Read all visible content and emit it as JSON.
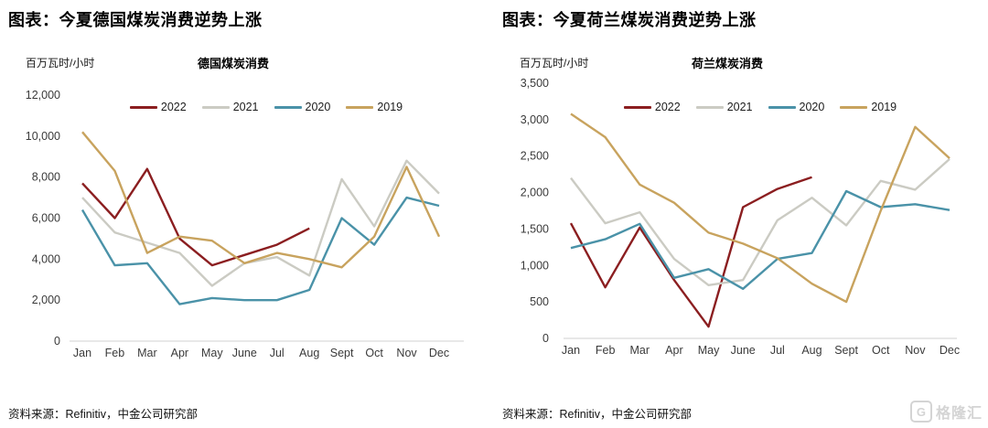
{
  "page": {
    "background": "#ffffff"
  },
  "watermark": {
    "icon": "gelonghui-logo-icon",
    "icon_letter": "G",
    "text": "格隆汇",
    "color": "#d4d4d4"
  },
  "chart_data": [
    {
      "type": "line",
      "heading": "图表：今夏德国煤炭消费逆势上涨",
      "title": "德国煤炭消费",
      "unit_label": "百万瓦时/小时",
      "source": "资料来源：Refinitiv，中金公司研究部",
      "categories": [
        "Jan",
        "Feb",
        "Mar",
        "Apr",
        "May",
        "June",
        "Jul",
        "Aug",
        "Sept",
        "Oct",
        "Nov",
        "Dec"
      ],
      "ylim": [
        0,
        12000
      ],
      "ytick_step": 2000,
      "ytick_labels": [
        "0",
        "2,000",
        "4,000",
        "6,000",
        "8,000",
        "10,000",
        "12,000"
      ],
      "grid": false,
      "legend_position": "top",
      "axis_color": "#d9d9d9",
      "series": [
        {
          "name": "2022",
          "color": "#8b1e20",
          "values": [
            7700,
            6000,
            8400,
            5000,
            3700,
            4200,
            4700,
            5500
          ]
        },
        {
          "name": "2021",
          "color": "#cbcbc3",
          "values": [
            7000,
            5300,
            4800,
            4300,
            2700,
            3800,
            4100,
            3200,
            7900,
            5600,
            8800,
            7200
          ]
        },
        {
          "name": "2020",
          "color": "#4a92a8",
          "values": [
            6400,
            3700,
            3800,
            1800,
            2100,
            2000,
            2000,
            2500,
            6000,
            4700,
            7000,
            6600
          ]
        },
        {
          "name": "2019",
          "color": "#c8a35e",
          "values": [
            10200,
            8300,
            4300,
            5100,
            4900,
            3800,
            4300,
            4000,
            3600,
            5100,
            8500,
            5100
          ]
        }
      ]
    },
    {
      "type": "line",
      "heading": "图表：今夏荷兰煤炭消费逆势上涨",
      "title": "荷兰煤炭消费",
      "unit_label": "百万瓦时/小时",
      "source": "资料来源：Refinitiv，中金公司研究部",
      "categories": [
        "Jan",
        "Feb",
        "Mar",
        "Apr",
        "May",
        "June",
        "Jul",
        "Aug",
        "Sept",
        "Oct",
        "Nov",
        "Dec"
      ],
      "ylim": [
        0,
        3500
      ],
      "ytick_step": 500,
      "ytick_labels": [
        "0",
        "500",
        "1,000",
        "1,500",
        "2,000",
        "2,500",
        "3,000",
        "3,500"
      ],
      "grid": false,
      "legend_position": "top",
      "axis_color": "#d9d9d9",
      "series": [
        {
          "name": "2022",
          "color": "#8b1e20",
          "values": [
            1580,
            700,
            1520,
            800,
            160,
            1800,
            2050,
            2210
          ]
        },
        {
          "name": "2021",
          "color": "#cbcbc3",
          "values": [
            2200,
            1580,
            1730,
            1090,
            730,
            800,
            1620,
            1930,
            1550,
            2160,
            2040,
            2460
          ]
        },
        {
          "name": "2020",
          "color": "#4a92a8",
          "values": [
            1240,
            1360,
            1570,
            830,
            950,
            680,
            1090,
            1170,
            2020,
            1800,
            1840,
            1760
          ]
        },
        {
          "name": "2019",
          "color": "#c8a35e",
          "values": [
            3080,
            2760,
            2110,
            1860,
            1450,
            1300,
            1100,
            750,
            500,
            1750,
            2900,
            2470
          ]
        }
      ]
    }
  ]
}
